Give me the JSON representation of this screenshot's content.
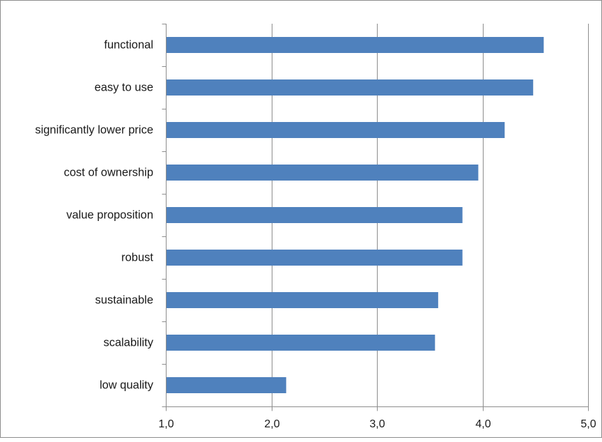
{
  "chart_data": {
    "type": "bar",
    "orientation": "horizontal",
    "categories": [
      "functional",
      "easy to use",
      "significantly lower price",
      "cost of ownership",
      "value proposition",
      "robust",
      "sustainable",
      "scalability",
      "low quality"
    ],
    "values": [
      4.58,
      4.48,
      4.21,
      3.96,
      3.81,
      3.81,
      3.58,
      3.55,
      2.14
    ],
    "xlim": [
      1.0,
      5.0
    ],
    "xticks": [
      1.0,
      2.0,
      3.0,
      4.0,
      5.0
    ],
    "xtick_labels": [
      "1,0",
      "2,0",
      "3,0",
      "4,0",
      "5,0"
    ],
    "grid": "vertical",
    "legend": "none",
    "title": "",
    "xlabel": "",
    "ylabel": "",
    "colors": {
      "bar": "#4f81bd",
      "grid": "#8c8c8c",
      "axis": "#8c8c8c"
    }
  }
}
